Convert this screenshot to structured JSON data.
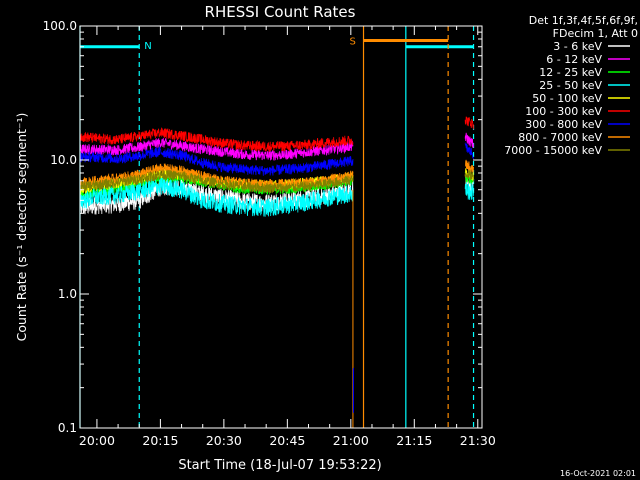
{
  "chart_data": {
    "type": "line",
    "title": "RHESSI Count Rates",
    "xlabel": "Start Time (18-Jul-07 19:53:22)",
    "ylabel": "Count Rate (s⁻¹ detector segment⁻¹)",
    "y_scale": "log",
    "ylim": [
      0.1,
      100.0
    ],
    "xlim": [
      "19:56",
      "21:31"
    ],
    "x_ticks": [
      "20:00",
      "20:15",
      "20:30",
      "20:45",
      "21:00",
      "21:15",
      "21:30"
    ],
    "y_ticks": [
      "0.1",
      "1.0",
      "10.0",
      "100.0"
    ],
    "legend_header": [
      "Det 1f,3f,4f,5f,6f,9f,",
      "FDecim 1, Att 0"
    ],
    "legend_position": "right",
    "x": [
      "19:56",
      "20:00",
      "20:05",
      "20:10",
      "20:15",
      "20:20",
      "20:25",
      "20:30",
      "20:35",
      "20:40",
      "20:45",
      "20:50",
      "20:55",
      "21:00",
      "21:27",
      "21:29"
    ],
    "series": [
      {
        "name": "3 - 6 keV",
        "color": "#ffffff",
        "values": [
          4.4,
          4.6,
          4.7,
          5.0,
          6.3,
          6.4,
          5.6,
          5.2,
          4.9,
          4.8,
          5.0,
          5.2,
          5.5,
          6.0,
          6.8,
          6.2
        ]
      },
      {
        "name": "6 - 12 keV",
        "color": "#ff00ff",
        "values": [
          12.0,
          12.0,
          11.9,
          12.5,
          13.5,
          12.8,
          12.0,
          11.5,
          11.0,
          10.8,
          11.0,
          11.5,
          12.0,
          12.6,
          15.0,
          13.0
        ]
      },
      {
        "name": "12 - 25 keV",
        "color": "#00ff00",
        "values": [
          5.5,
          5.8,
          6.1,
          6.6,
          7.2,
          7.3,
          6.9,
          6.4,
          6.1,
          6.0,
          6.1,
          6.3,
          6.6,
          7.0,
          7.5,
          7.0
        ]
      },
      {
        "name": "25 - 50 keV",
        "color": "#00ffff",
        "values": [
          5.0,
          5.3,
          5.5,
          5.9,
          6.4,
          6.0,
          5.0,
          4.7,
          4.5,
          4.4,
          4.6,
          4.9,
          5.3,
          5.6,
          6.0,
          5.7
        ]
      },
      {
        "name": "50 - 100 keV",
        "color": "#ffff00",
        "values": [
          6.0,
          6.4,
          6.7,
          7.3,
          8.0,
          7.8,
          7.2,
          6.8,
          6.6,
          6.5,
          6.6,
          6.8,
          7.0,
          7.4,
          8.2,
          7.6
        ]
      },
      {
        "name": "100 - 300 keV",
        "color": "#ff0000",
        "values": [
          15.0,
          14.5,
          14.2,
          15.0,
          16.0,
          15.2,
          14.2,
          13.3,
          12.8,
          12.6,
          12.7,
          13.0,
          13.6,
          14.0,
          20.0,
          18.5
        ]
      },
      {
        "name": "300 - 800 keV",
        "color": "#0000ff",
        "values": [
          10.5,
          10.5,
          10.2,
          10.8,
          11.5,
          10.8,
          9.5,
          8.8,
          8.5,
          8.3,
          8.5,
          8.8,
          9.3,
          9.8,
          12.5,
          11.0
        ]
      },
      {
        "name": "800 - 7000 keV",
        "color": "#ff8c00",
        "values": [
          6.7,
          7.0,
          7.3,
          7.8,
          8.7,
          8.3,
          7.5,
          7.0,
          6.7,
          6.6,
          6.6,
          6.8,
          7.1,
          7.6,
          9.3,
          8.6
        ]
      },
      {
        "name": "7000 - 15000 keV",
        "color": "#808000",
        "values": [
          6.3,
          6.5,
          6.8,
          7.2,
          7.8,
          7.6,
          7.0,
          6.6,
          6.3,
          6.2,
          6.2,
          6.4,
          6.7,
          7.1,
          8.0,
          7.5
        ]
      }
    ],
    "annotations": [
      {
        "label": "N",
        "color": "#00ffff"
      },
      {
        "label": "S",
        "color": "#ff8c00"
      }
    ],
    "timestamp": "16-Oct-2021 02:01"
  }
}
